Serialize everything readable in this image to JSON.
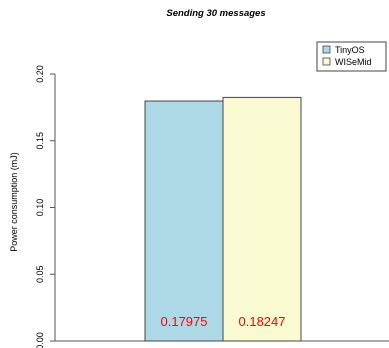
{
  "chart_data": {
    "type": "bar",
    "title": "Sending 30 messages",
    "xlabel": "",
    "ylabel": "Power consumption (mJ)",
    "ylim": [
      0,
      0.2
    ],
    "yticks": [
      "0.00",
      "0.05",
      "0.10",
      "0.15",
      "0.20"
    ],
    "categories": [
      "TinyOS",
      "WISeMid"
    ],
    "values": [
      0.17975,
      0.18247
    ],
    "data_labels": [
      "0.17975",
      "0.18247"
    ],
    "colors": [
      "#add8e6",
      "#fafad2"
    ],
    "label_color": "#ff0000",
    "grid": false,
    "legend_position": "top-right"
  }
}
